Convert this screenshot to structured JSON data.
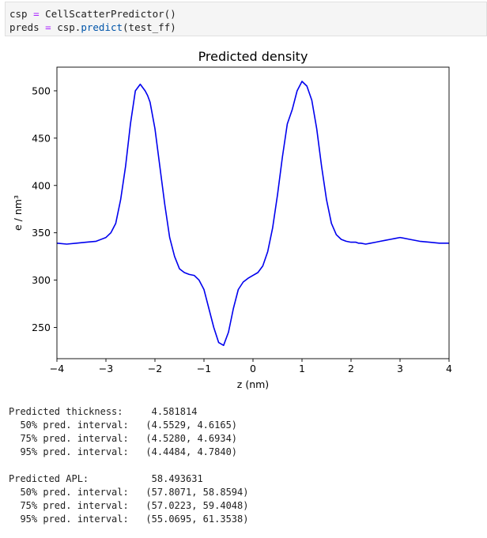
{
  "code": {
    "line1": {
      "var": "csp",
      "op": "=",
      "call": "CellScatterPredictor()"
    },
    "line2": {
      "var": "preds",
      "op": "=",
      "obj": "csp.",
      "method": "predict",
      "args": "(test_ff)"
    }
  },
  "chart_data": {
    "type": "line",
    "title": "Predicted density",
    "xlabel": "z (nm)",
    "ylabel": "e / nm³",
    "xlim": [
      -4,
      4
    ],
    "ylim": [
      217,
      525
    ],
    "xticks": [
      -4,
      -3,
      -2,
      -1,
      0,
      1,
      2,
      3,
      4
    ],
    "xtick_labels": [
      "−4",
      "−3",
      "−2",
      "−1",
      "0",
      "1",
      "2",
      "3",
      "4"
    ],
    "yticks": [
      250,
      300,
      350,
      400,
      450,
      500
    ],
    "yticks_labels": [
      "250",
      "300",
      "350",
      "400",
      "450",
      "500"
    ],
    "grid": false,
    "color": "#0000ee",
    "series": [
      {
        "x": [
          -4.0,
          -3.8,
          -3.6,
          -3.4,
          -3.2,
          -3.0,
          -2.9,
          -2.8,
          -2.7,
          -2.6,
          -2.5,
          -2.4,
          -2.3,
          -2.2,
          -2.15,
          -2.1,
          -2.0,
          -1.9,
          -1.8,
          -1.7,
          -1.6,
          -1.5,
          -1.4,
          -1.3,
          -1.2,
          -1.1,
          -1.0,
          -0.9,
          -0.8,
          -0.7,
          -0.6,
          -0.5,
          -0.4,
          -0.3,
          -0.2,
          -0.1,
          0.0,
          0.1,
          0.2,
          0.3,
          0.4,
          0.5,
          0.6,
          0.7,
          0.8,
          0.9,
          1.0,
          1.1,
          1.2,
          1.3,
          1.4,
          1.5,
          1.6,
          1.7,
          1.8,
          1.9,
          2.0,
          2.1,
          2.15,
          2.2,
          2.3,
          2.4,
          2.5,
          2.6,
          2.7,
          2.8,
          2.9,
          3.0,
          3.2,
          3.4,
          3.6,
          3.8,
          4.0
        ],
        "y": [
          339,
          338,
          339,
          340,
          341,
          345,
          350,
          360,
          385,
          420,
          465,
          500,
          507,
          500,
          495,
          488,
          460,
          420,
          380,
          345,
          325,
          312,
          308,
          306,
          305,
          300,
          290,
          270,
          250,
          234,
          231,
          245,
          270,
          290,
          298,
          302,
          305,
          308,
          315,
          330,
          355,
          390,
          430,
          465,
          480,
          500,
          510,
          505,
          490,
          460,
          420,
          385,
          360,
          348,
          343,
          341,
          340,
          340,
          339,
          339,
          338,
          339,
          340,
          341,
          342,
          343,
          344,
          345,
          343,
          341,
          340,
          339,
          339
        ]
      }
    ]
  },
  "output": {
    "thickness": {
      "label": "Predicted thickness:",
      "value": "4.581814",
      "intervals": [
        {
          "label": "50% pred. interval:",
          "value": "(4.5529, 4.6165)"
        },
        {
          "label": "75% pred. interval:",
          "value": "(4.5280, 4.6934)"
        },
        {
          "label": "95% pred. interval:",
          "value": "(4.4484, 4.7840)"
        }
      ]
    },
    "apl": {
      "label": "Predicted APL:",
      "value": "58.493631",
      "intervals": [
        {
          "label": "50% pred. interval:",
          "value": "(57.8071, 58.8594)"
        },
        {
          "label": "75% pred. interval:",
          "value": "(57.0223, 59.4048)"
        },
        {
          "label": "95% pred. interval:",
          "value": "(55.0695, 61.3538)"
        }
      ]
    }
  }
}
